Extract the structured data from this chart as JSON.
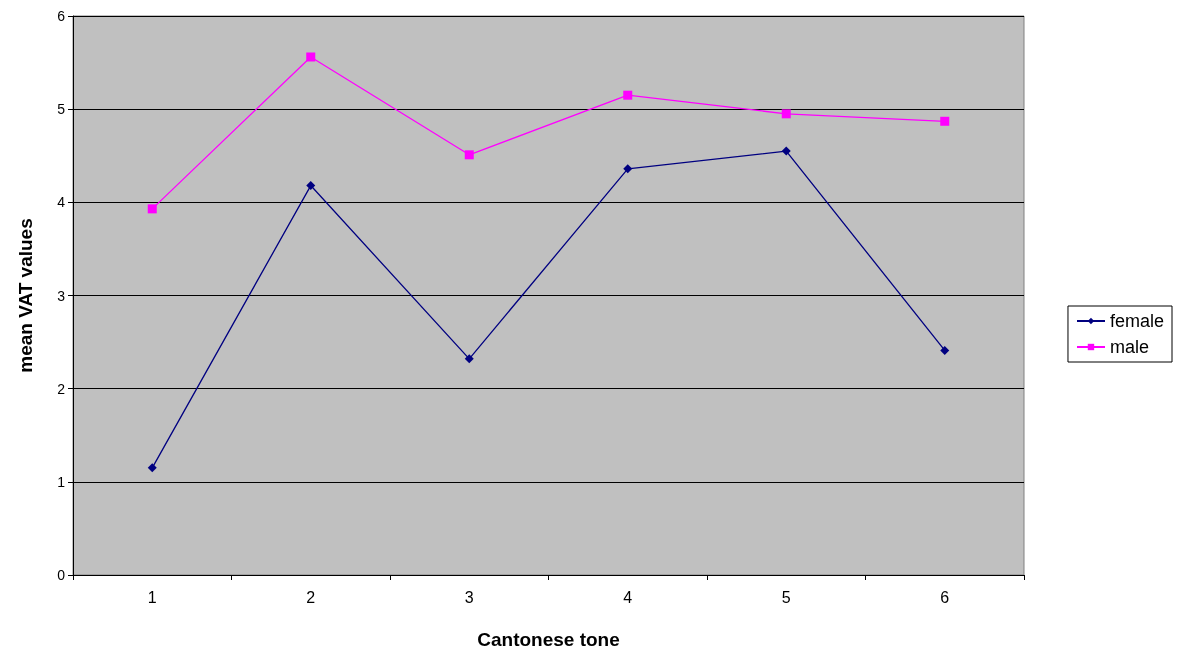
{
  "chart_data": {
    "type": "line",
    "xlabel": "Cantonese tone",
    "ylabel": "mean VAT values",
    "categories": [
      "1",
      "2",
      "3",
      "4",
      "5",
      "6"
    ],
    "series": [
      {
        "name": "female",
        "color": "#000080",
        "marker": "diamond",
        "values": [
          1.15,
          4.18,
          2.32,
          4.36,
          4.55,
          2.41
        ]
      },
      {
        "name": "male",
        "color": "#ff00ff",
        "marker": "square",
        "values": [
          3.93,
          5.56,
          4.51,
          5.15,
          4.95,
          4.87
        ]
      }
    ],
    "ylim": [
      0,
      6
    ],
    "yticks": [
      0,
      1,
      2,
      3,
      4,
      5,
      6
    ],
    "grid": "y",
    "legend": "right",
    "line_style": "solid"
  }
}
